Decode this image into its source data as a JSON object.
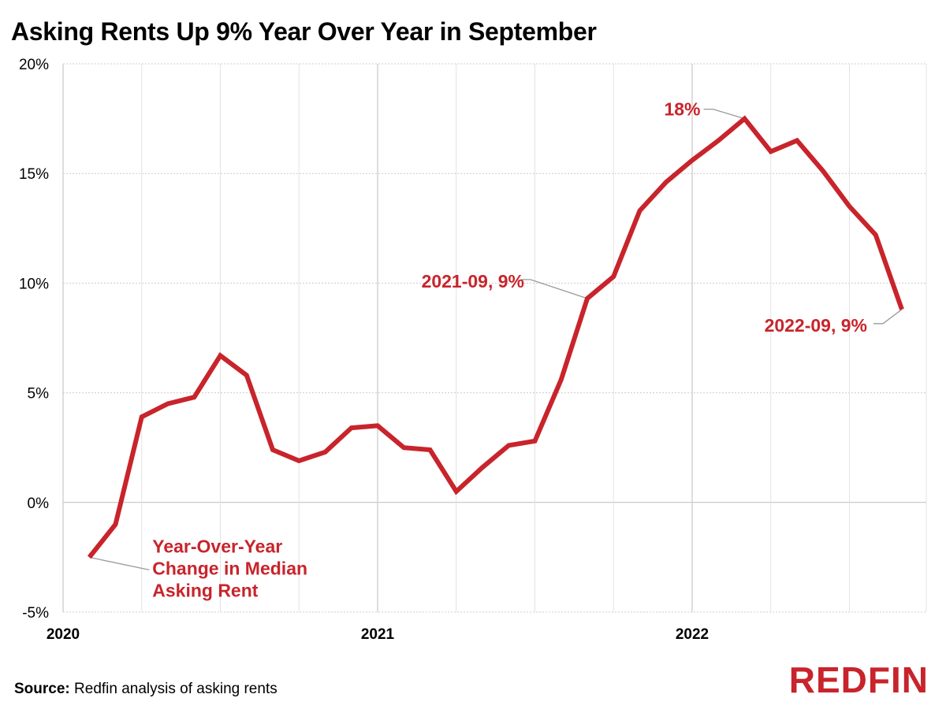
{
  "title": "Asking Rents Up 9% Year Over Year in September",
  "source_label": "Source:",
  "source_text": "Redfin analysis of asking rents",
  "logo": "REDFIN",
  "colors": {
    "line": "#c8242b",
    "label": "#c8242b",
    "grid": "#cccccc",
    "leader": "#999999"
  },
  "chart_data": {
    "type": "line",
    "title": "Asking Rents Up 9% Year Over Year in September",
    "xlabel": "",
    "ylabel": "",
    "ylim": [
      -5,
      20
    ],
    "yticks": [
      -5,
      0,
      5,
      10,
      15,
      20
    ],
    "ytick_labels": [
      "-5%",
      "0%",
      "5%",
      "10%",
      "15%",
      "20%"
    ],
    "xtick_labels": [
      "2020",
      "2021",
      "2022"
    ],
    "xtick_dates": [
      "2020-01",
      "2021-01",
      "2022-01"
    ],
    "grid": true,
    "series": [
      {
        "name": "Year-Over-Year Change in Median Asking Rent",
        "x": [
          "2020-02",
          "2020-03",
          "2020-04",
          "2020-05",
          "2020-06",
          "2020-07",
          "2020-08",
          "2020-09",
          "2020-10",
          "2020-11",
          "2020-12",
          "2021-01",
          "2021-02",
          "2021-03",
          "2021-04",
          "2021-05",
          "2021-06",
          "2021-07",
          "2021-08",
          "2021-09",
          "2021-10",
          "2021-11",
          "2021-12",
          "2022-01",
          "2022-02",
          "2022-03",
          "2022-04",
          "2022-05",
          "2022-06",
          "2022-07",
          "2022-08",
          "2022-09"
        ],
        "values": [
          -2.5,
          -1.0,
          3.9,
          4.5,
          4.8,
          6.7,
          5.8,
          2.4,
          1.9,
          2.3,
          3.4,
          3.5,
          2.5,
          2.4,
          0.5,
          1.6,
          2.6,
          2.8,
          5.6,
          9.3,
          10.3,
          13.3,
          14.6,
          15.6,
          16.5,
          17.5,
          16.0,
          16.5,
          15.1,
          13.5,
          12.2,
          8.8
        ]
      }
    ],
    "annotations": [
      {
        "text": "18%",
        "x": "2022-03",
        "y": 17.5
      },
      {
        "text": "2021-09, 9%",
        "x": "2021-09",
        "y": 9.3
      },
      {
        "text": "2022-09, 9%",
        "x": "2022-09",
        "y": 8.8
      },
      {
        "text": "Year-Over-Year\nChange in Median\nAsking Rent",
        "x": "2020-02",
        "y": -2.5
      }
    ]
  }
}
